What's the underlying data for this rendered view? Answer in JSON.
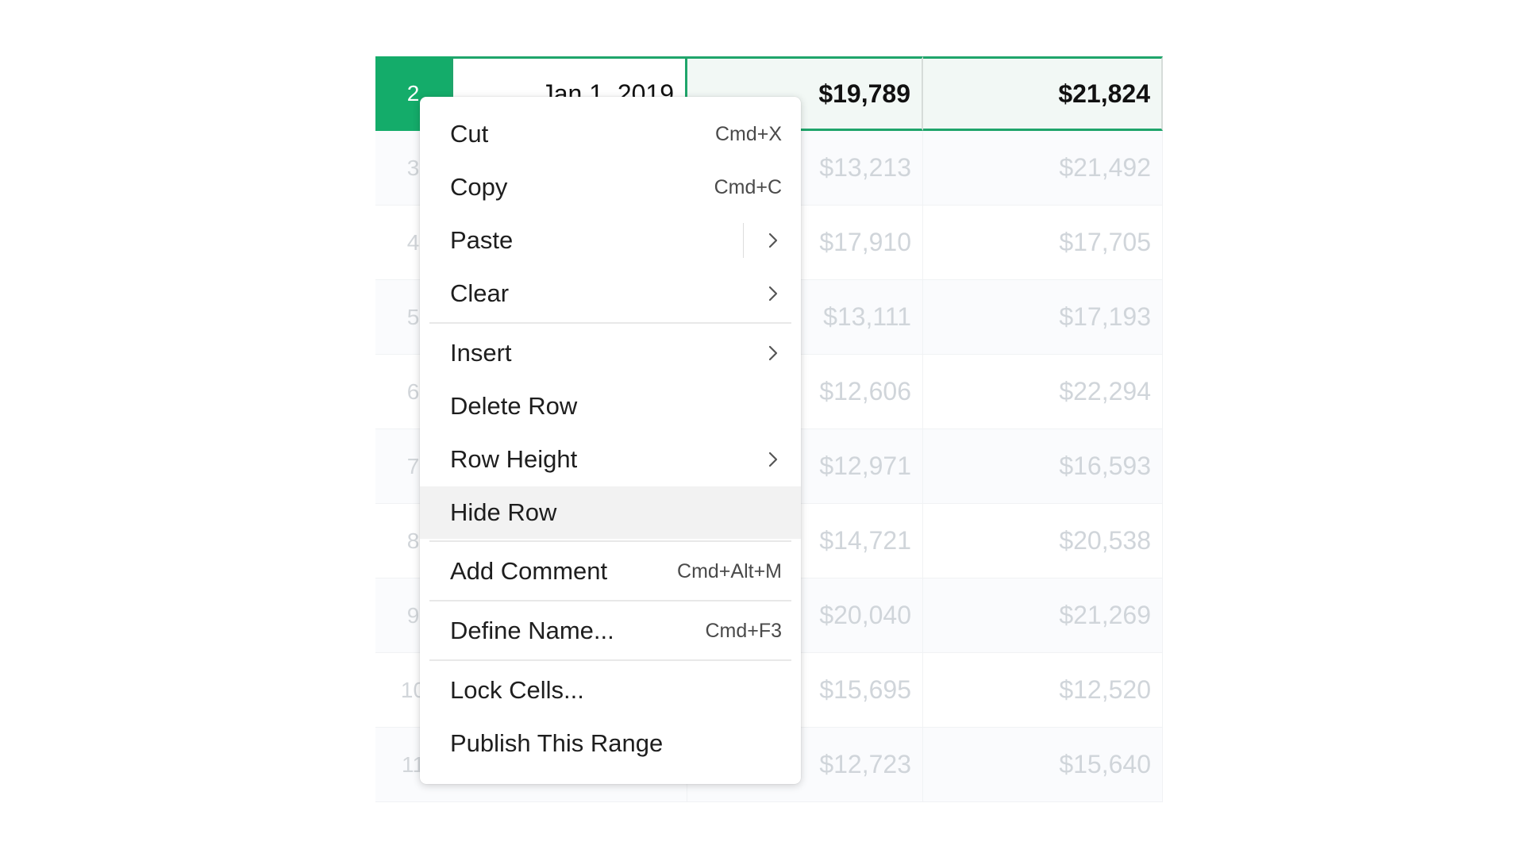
{
  "sheet": {
    "selected_row": {
      "number": "2",
      "date": "Jan 1, 2019",
      "col_a": "$19,789",
      "col_b": "$21,824"
    },
    "rows": [
      {
        "number": "3",
        "col_a": "$13,213",
        "col_b": "$21,492"
      },
      {
        "number": "4",
        "col_a": "$17,910",
        "col_b": "$17,705"
      },
      {
        "number": "5",
        "col_a": "$13,111",
        "col_b": "$17,193"
      },
      {
        "number": "6",
        "col_a": "$12,606",
        "col_b": "$22,294"
      },
      {
        "number": "7",
        "col_a": "$12,971",
        "col_b": "$16,593"
      },
      {
        "number": "8",
        "col_a": "$14,721",
        "col_b": "$20,538"
      },
      {
        "number": "9",
        "col_a": "$20,040",
        "col_b": "$21,269"
      },
      {
        "number": "10",
        "col_a": "$15,695",
        "col_b": "$12,520"
      },
      {
        "number": "11",
        "col_a": "$12,723",
        "col_b": "$15,640"
      }
    ]
  },
  "menu": {
    "cut": {
      "label": "Cut",
      "shortcut": "Cmd+X"
    },
    "copy": {
      "label": "Copy",
      "shortcut": "Cmd+C"
    },
    "paste": {
      "label": "Paste"
    },
    "clear": {
      "label": "Clear"
    },
    "insert": {
      "label": "Insert"
    },
    "delete_row": {
      "label": "Delete Row"
    },
    "row_height": {
      "label": "Row Height"
    },
    "hide_row": {
      "label": "Hide Row"
    },
    "add_comment": {
      "label": "Add Comment",
      "shortcut": "Cmd+Alt+M"
    },
    "define_name": {
      "label": "Define Name...",
      "shortcut": "Cmd+F3"
    },
    "lock_cells": {
      "label": "Lock Cells..."
    },
    "publish_range": {
      "label": "Publish This Range"
    }
  },
  "colors": {
    "accent": "#14ac6a",
    "selection_border": "#1fa56b",
    "hover": "#f2f2f2"
  },
  "icons": {
    "submenu": "chevron-right-icon"
  }
}
